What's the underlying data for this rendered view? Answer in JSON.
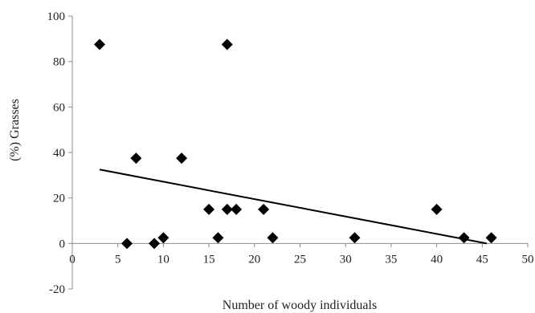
{
  "chart_data": {
    "type": "scatter",
    "title": "",
    "xlabel": "Number of woody individuals",
    "ylabel": "(%) Grasses",
    "xlim": [
      0,
      50
    ],
    "ylim": [
      -20,
      100
    ],
    "xticks": [
      0,
      5,
      10,
      15,
      20,
      25,
      30,
      35,
      40,
      45,
      50
    ],
    "yticks": [
      -20,
      0,
      20,
      40,
      60,
      80,
      100
    ],
    "grid": false,
    "legend": "none",
    "marker": "diamond",
    "marker_color": "#000000",
    "series": [
      {
        "points": [
          {
            "x": 3,
            "y": 87.5
          },
          {
            "x": 17,
            "y": 87.5
          },
          {
            "x": 7,
            "y": 37.5
          },
          {
            "x": 12,
            "y": 37.5
          },
          {
            "x": 15,
            "y": 15
          },
          {
            "x": 17,
            "y": 15
          },
          {
            "x": 18,
            "y": 15
          },
          {
            "x": 21,
            "y": 15
          },
          {
            "x": 40,
            "y": 15
          },
          {
            "x": 10,
            "y": 2.5
          },
          {
            "x": 16,
            "y": 2.5
          },
          {
            "x": 22,
            "y": 2.5
          },
          {
            "x": 31,
            "y": 2.5
          },
          {
            "x": 43,
            "y": 2.5
          },
          {
            "x": 46,
            "y": 2.5
          },
          {
            "x": 6,
            "y": 0
          },
          {
            "x": 9,
            "y": 0
          }
        ]
      }
    ],
    "trendline": {
      "type": "linear",
      "color": "#000000",
      "points": [
        {
          "x": 3,
          "y": 32.5
        },
        {
          "x": 45.5,
          "y": 0
        }
      ]
    }
  }
}
